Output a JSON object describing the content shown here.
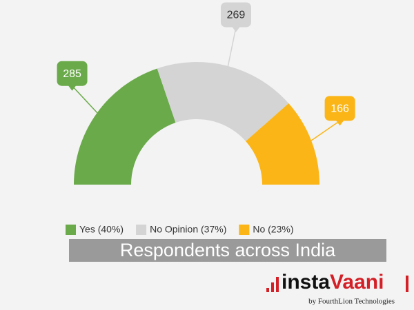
{
  "chart_data": {
    "type": "semi-donut",
    "categories": [
      "Yes (40%)",
      "No Opinion (37%)",
      "No (23%)"
    ],
    "values": [
      285,
      269,
      166
    ],
    "colors": [
      "#6aaa4a",
      "#d4d4d4",
      "#fbb516"
    ],
    "title": "Respondents across India"
  },
  "brand": {
    "name_parts": [
      "insta",
      "Vaani"
    ],
    "tagline": "by FourthLion Technologies"
  }
}
